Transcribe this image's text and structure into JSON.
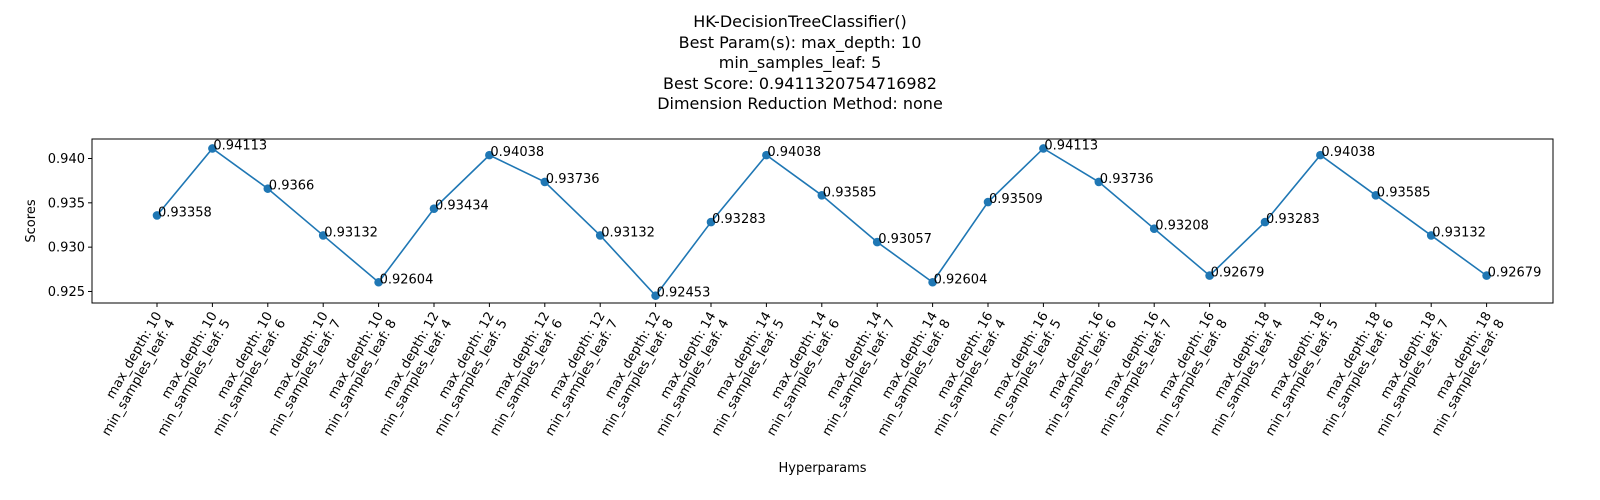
{
  "chart_data": {
    "type": "line",
    "title_lines": [
      "HK-DecisionTreeClassifier()",
      "Best Param(s): max_depth: 10",
      "min_samples_leaf: 5",
      "",
      "Best Score: 0.9411320754716982",
      "Dimension Reduction Method: none"
    ],
    "xlabel": "Hyperparams",
    "ylabel": "Scores",
    "ylim": [
      0.9237,
      0.9422
    ],
    "yticks": [
      0.925,
      0.93,
      0.935,
      0.94
    ],
    "ytick_labels": [
      "0.925",
      "0.930",
      "0.935",
      "0.940"
    ],
    "grid": false,
    "color": "#1f77b4",
    "categories": [
      [
        "max_depth: 10",
        "min_samples_leaf: 4"
      ],
      [
        "max_depth: 10",
        "min_samples_leaf: 5"
      ],
      [
        "max_depth: 10",
        "min_samples_leaf: 6"
      ],
      [
        "max_depth: 10",
        "min_samples_leaf: 7"
      ],
      [
        "max_depth: 10",
        "min_samples_leaf: 8"
      ],
      [
        "max_depth: 12",
        "min_samples_leaf: 4"
      ],
      [
        "max_depth: 12",
        "min_samples_leaf: 5"
      ],
      [
        "max_depth: 12",
        "min_samples_leaf: 6"
      ],
      [
        "max_depth: 12",
        "min_samples_leaf: 7"
      ],
      [
        "max_depth: 12",
        "min_samples_leaf: 8"
      ],
      [
        "max_depth: 14",
        "min_samples_leaf: 4"
      ],
      [
        "max_depth: 14",
        "min_samples_leaf: 5"
      ],
      [
        "max_depth: 14",
        "min_samples_leaf: 6"
      ],
      [
        "max_depth: 14",
        "min_samples_leaf: 7"
      ],
      [
        "max_depth: 14",
        "min_samples_leaf: 8"
      ],
      [
        "max_depth: 16",
        "min_samples_leaf: 4"
      ],
      [
        "max_depth: 16",
        "min_samples_leaf: 5"
      ],
      [
        "max_depth: 16",
        "min_samples_leaf: 6"
      ],
      [
        "max_depth: 16",
        "min_samples_leaf: 7"
      ],
      [
        "max_depth: 16",
        "min_samples_leaf: 8"
      ],
      [
        "max_depth: 18",
        "min_samples_leaf: 4"
      ],
      [
        "max_depth: 18",
        "min_samples_leaf: 5"
      ],
      [
        "max_depth: 18",
        "min_samples_leaf: 6"
      ],
      [
        "max_depth: 18",
        "min_samples_leaf: 7"
      ],
      [
        "max_depth: 18",
        "min_samples_leaf: 8"
      ]
    ],
    "values": [
      0.93358,
      0.94113,
      0.9366,
      0.93132,
      0.92604,
      0.93434,
      0.94038,
      0.93736,
      0.93132,
      0.92453,
      0.93283,
      0.94038,
      0.93585,
      0.93057,
      0.92604,
      0.93509,
      0.94113,
      0.93736,
      0.93208,
      0.92679,
      0.93283,
      0.94038,
      0.93585,
      0.93132,
      0.92679
    ],
    "value_labels": [
      "0.93358",
      "0.94113",
      "0.9366",
      "0.93132",
      "0.92604",
      "0.93434",
      "0.94038",
      "0.93736",
      "0.93132",
      "0.92453",
      "0.93283",
      "0.94038",
      "0.93585",
      "0.93057",
      "0.92604",
      "0.93509",
      "0.94113",
      "0.93736",
      "0.93208",
      "0.92679",
      "0.93283",
      "0.94038",
      "0.93585",
      "0.93132",
      "0.92679"
    ]
  }
}
